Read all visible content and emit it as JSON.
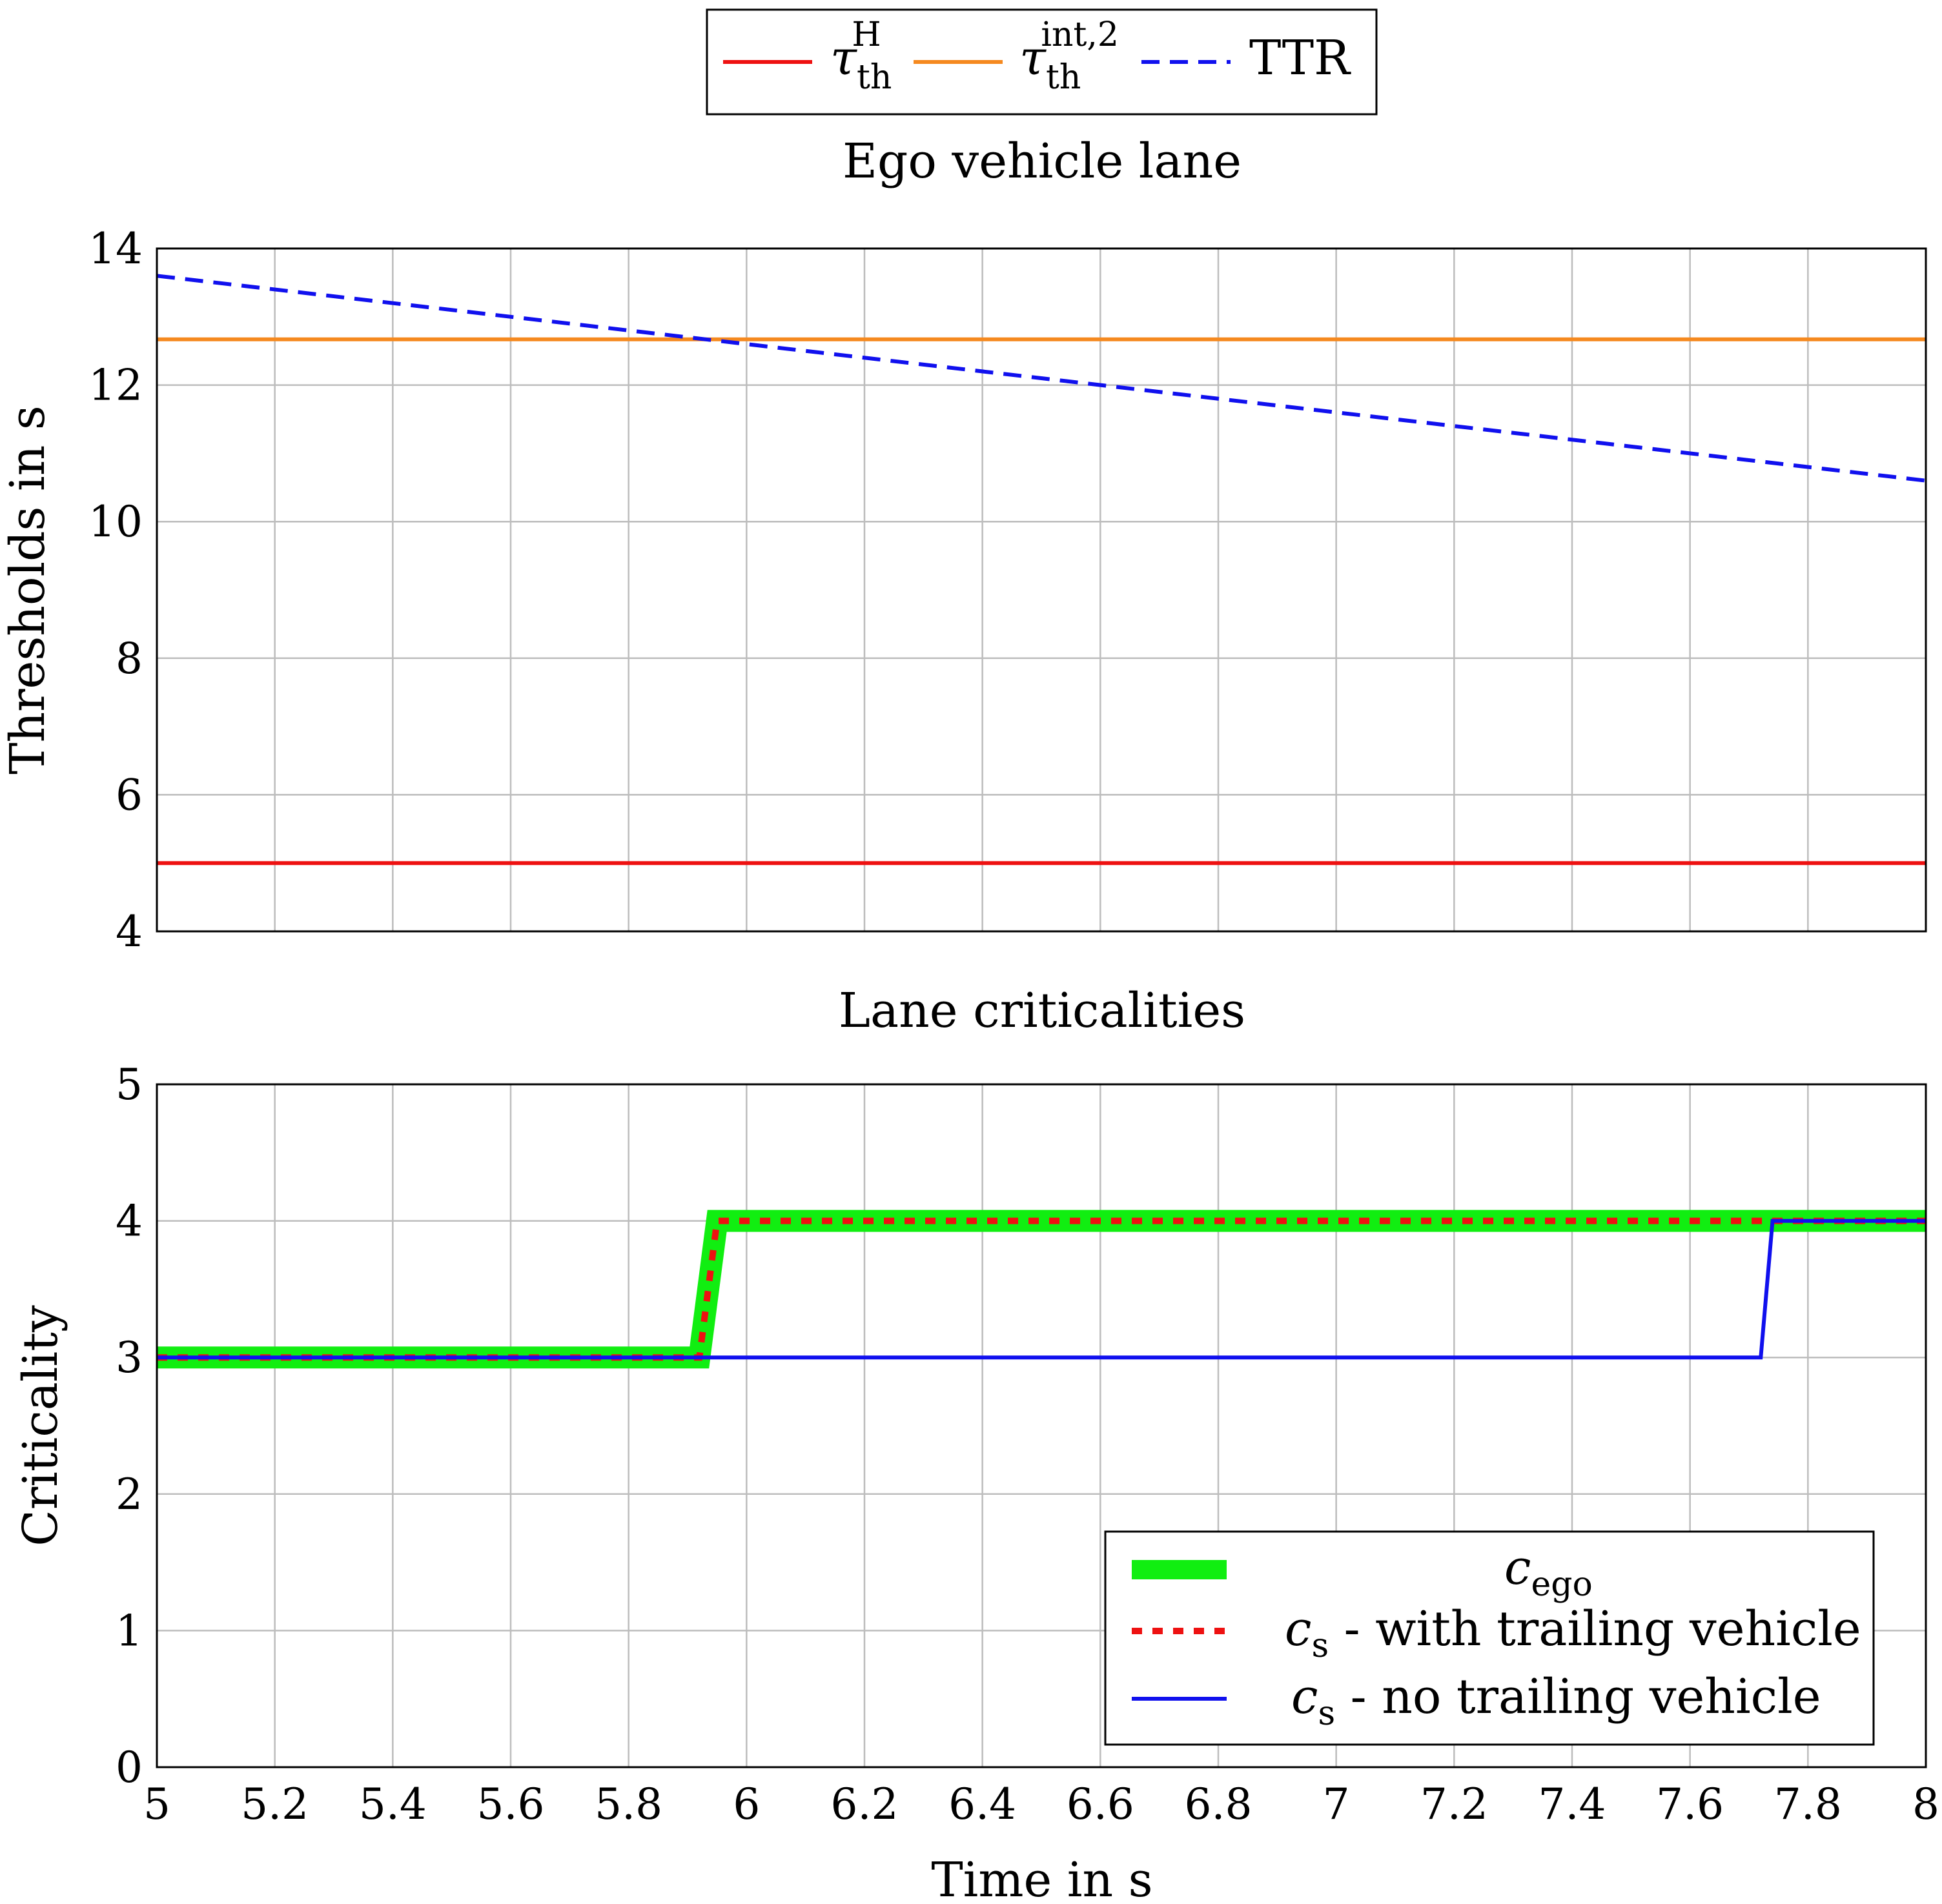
{
  "chart_data": [
    {
      "type": "line",
      "title": "Ego vehicle lane",
      "xlabel": "",
      "ylabel": "Thresholds in s",
      "xlim": [
        5,
        8
      ],
      "ylim": [
        4,
        14
      ],
      "xticks": [
        5,
        5.2,
        5.4,
        5.6,
        5.8,
        6,
        6.2,
        6.4,
        6.6,
        6.8,
        7,
        7.2,
        7.4,
        7.6,
        7.8,
        8
      ],
      "yticks": [
        4,
        6,
        8,
        10,
        12,
        14
      ],
      "ytick_labels": [
        "4",
        "6",
        "8",
        "10",
        "12",
        "14"
      ],
      "grid": true,
      "legend_position": "top, outside",
      "series": [
        {
          "name": "τ_th^H",
          "label_main": "τ",
          "label_sub": "th",
          "label_sup": "H",
          "color": "#ee1111",
          "style": "solid",
          "x": [
            5,
            8
          ],
          "y": [
            5,
            5
          ]
        },
        {
          "name": "τ_th^int,2",
          "label_main": "τ",
          "label_sub": "th",
          "label_sup": "int,2",
          "color": "#f5891f",
          "style": "solid",
          "x": [
            5,
            8
          ],
          "y": [
            12.67,
            12.67
          ]
        },
        {
          "name": "TTR",
          "label_main": "TTR",
          "color": "#1010ee",
          "style": "dashed",
          "x": [
            5,
            8
          ],
          "y": [
            13.6,
            10.6
          ]
        }
      ]
    },
    {
      "type": "line",
      "title": "Lane criticalities",
      "xlabel": "Time in s",
      "ylabel": "Criticality",
      "xlim": [
        5,
        8
      ],
      "ylim": [
        0,
        5
      ],
      "xticks": [
        5,
        5.2,
        5.4,
        5.6,
        5.8,
        6,
        6.2,
        6.4,
        6.6,
        6.8,
        7,
        7.2,
        7.4,
        7.6,
        7.8,
        8
      ],
      "xtick_labels": [
        "5",
        "5.2",
        "5.4",
        "5.6",
        "5.8",
        "6",
        "6.2",
        "6.4",
        "6.6",
        "6.8",
        "7",
        "7.2",
        "7.4",
        "7.6",
        "7.8",
        "8"
      ],
      "yticks": [
        0,
        1,
        2,
        3,
        4,
        5
      ],
      "ytick_labels": [
        "0",
        "1",
        "2",
        "3",
        "4",
        "5"
      ],
      "grid": true,
      "legend_position": "bottom-right",
      "series": [
        {
          "name": "c_ego",
          "label_main": "c",
          "label_sub": "ego",
          "label_rest": "",
          "color": "#11ee11",
          "style": "thick",
          "x": [
            5,
            5.92,
            5.95,
            8
          ],
          "y": [
            3,
            3,
            4,
            4
          ]
        },
        {
          "name": "c_s - with trailing vehicle",
          "label_main": "c",
          "label_sub": "s",
          "label_rest": " - with trailing vehicle",
          "color": "#ee1111",
          "style": "dotted",
          "x": [
            5,
            5.92,
            5.95,
            8
          ],
          "y": [
            3,
            3,
            4,
            4
          ]
        },
        {
          "name": "c_s - no trailing vehicle",
          "label_main": "c",
          "label_sub": "s",
          "label_rest": " - no trailing vehicle",
          "color": "#1010ee",
          "style": "solid",
          "x": [
            5,
            7.72,
            7.74,
            8
          ],
          "y": [
            3,
            3,
            4,
            4
          ]
        }
      ]
    }
  ]
}
